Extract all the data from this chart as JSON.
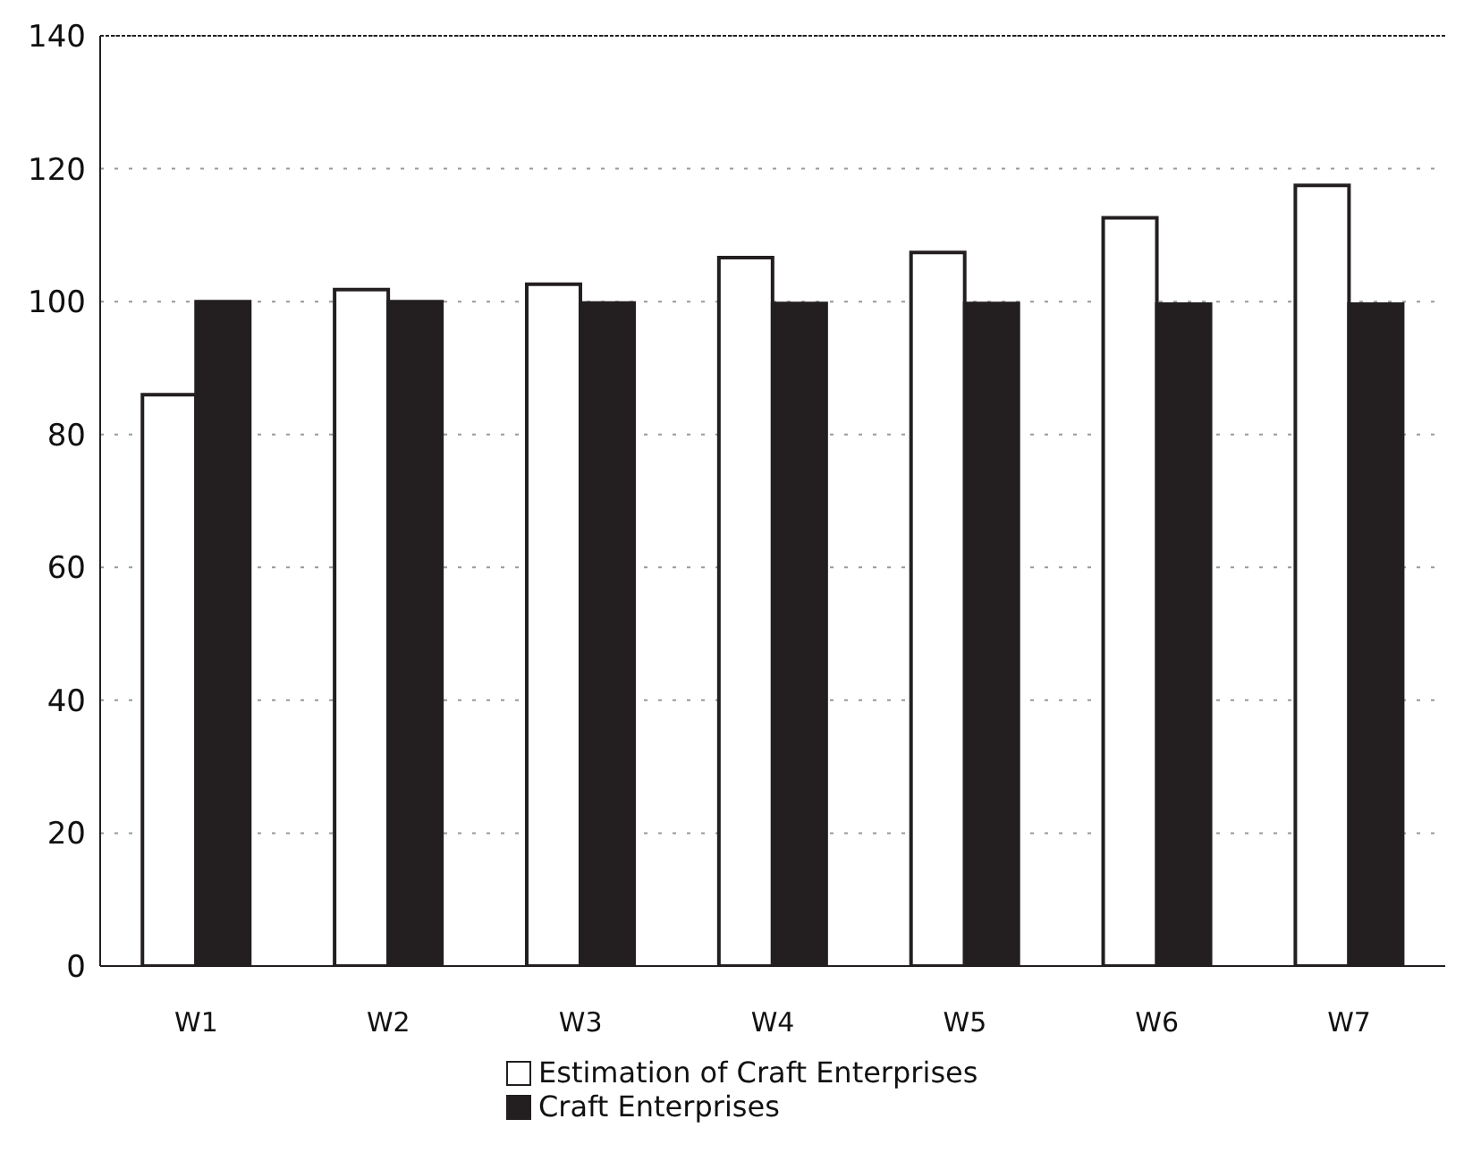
{
  "chart_data": {
    "type": "bar",
    "categories": [
      "W1",
      "W2",
      "W3",
      "W4",
      "W5",
      "W6",
      "W7"
    ],
    "series": [
      {
        "name": "Estimation of Craft Enterprises",
        "color": "#ffffff",
        "values": [
          86,
          101.8,
          102.6,
          106.6,
          107.4,
          112.6,
          117.5
        ]
      },
      {
        "name": "Craft Enterprises",
        "color": "#231f20",
        "values": [
          100,
          100,
          99.8,
          99.7,
          99.7,
          99.6,
          99.6
        ]
      }
    ],
    "ylim": [
      0,
      140
    ],
    "yticks": [
      0,
      20,
      40,
      60,
      80,
      100,
      120,
      140
    ],
    "grid": "y",
    "legend": "bottom"
  }
}
